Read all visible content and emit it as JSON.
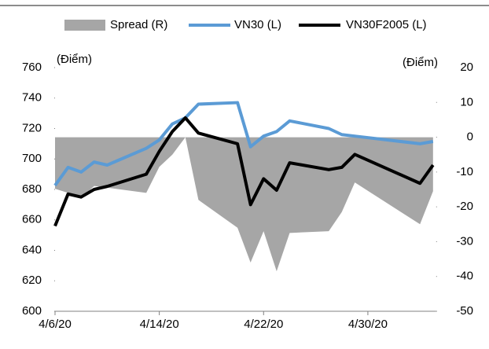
{
  "chart_data": {
    "type": "line",
    "y_label": "(Điểm)",
    "y2_label": "(Điểm)",
    "x": [
      "4/6/20",
      "4/7/20",
      "4/8/20",
      "4/9/20",
      "4/10/20",
      "4/13/20",
      "4/14/20",
      "4/15/20",
      "4/16/20",
      "4/17/20",
      "4/20/20",
      "4/21/20",
      "4/22/20",
      "4/23/20",
      "4/24/20",
      "4/27/20",
      "4/28/20",
      "4/29/20",
      "5/4/20",
      "5/5/20"
    ],
    "xticks": [
      "4/6/20",
      "4/14/20",
      "4/22/20",
      "4/30/20"
    ],
    "series": [
      {
        "name": "Spread (R)",
        "type": "area",
        "axis": "y2",
        "color": "#a6a6a6",
        "values": [
          -14.8,
          -16,
          -17.5,
          -14,
          -14.5,
          -16,
          -8.5,
          -5,
          0,
          -18,
          -26,
          -36,
          -27,
          -38.5,
          -27.5,
          -27,
          -21.5,
          -13,
          -25,
          -15.5
        ]
      },
      {
        "name": "VN30 (L)",
        "type": "line",
        "color": "#5b9bd5",
        "values": [
          682.6,
          694.5,
          691.4,
          698,
          696,
          707,
          712.5,
          723,
          727,
          736,
          737,
          708,
          715,
          718,
          725,
          720,
          716,
          715,
          710,
          711.5
        ]
      },
      {
        "name": "VN30F2005 (L)",
        "type": "line",
        "color": "#000000",
        "values": [
          656,
          677,
          675,
          680,
          682,
          690,
          705,
          718,
          727,
          717,
          710,
          670,
          687,
          679.5,
          697.5,
          693,
          694.5,
          703,
          684,
          696
        ]
      }
    ],
    "ylim": [
      600,
      760
    ],
    "yticks": [
      600,
      620,
      640,
      660,
      680,
      700,
      720,
      740,
      760
    ],
    "y2lim": [
      -50,
      20
    ],
    "y2ticks": [
      -50,
      -40,
      -30,
      -20,
      -10,
      0,
      10,
      20
    ],
    "legend": "top"
  }
}
